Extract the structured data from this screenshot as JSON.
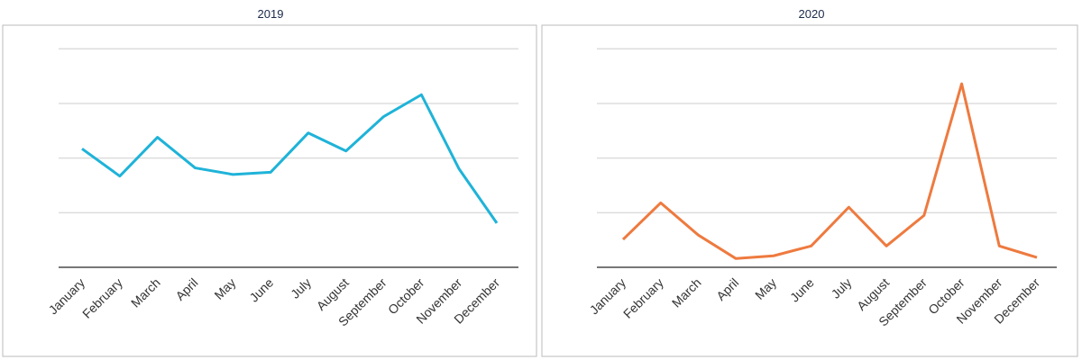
{
  "chart_data": [
    {
      "type": "line",
      "title": "2019",
      "categories": [
        "January",
        "February",
        "March",
        "April",
        "May",
        "June",
        "July",
        "August",
        "September",
        "October",
        "November",
        "December"
      ],
      "values": [
        2.17,
        1.67,
        2.38,
        1.82,
        1.7,
        1.74,
        2.46,
        2.13,
        2.76,
        3.16,
        1.8,
        0.81
      ],
      "color": "#1fb3d8",
      "ylim": [
        0,
        4.4
      ],
      "yticks": [
        0,
        1,
        2,
        3,
        4
      ],
      "grid": true
    },
    {
      "type": "line",
      "title": "2020",
      "categories": [
        "January",
        "February",
        "March",
        "April",
        "May",
        "June",
        "July",
        "August",
        "September",
        "October",
        "November",
        "December"
      ],
      "values": [
        0.51,
        1.18,
        0.59,
        0.16,
        0.21,
        0.39,
        1.1,
        0.39,
        0.95,
        3.36,
        0.39,
        0.18
      ],
      "color": "#ee7a3f",
      "ylim": [
        0,
        4.4
      ],
      "yticks": [
        0,
        1,
        2,
        3,
        4
      ],
      "grid": true
    }
  ]
}
